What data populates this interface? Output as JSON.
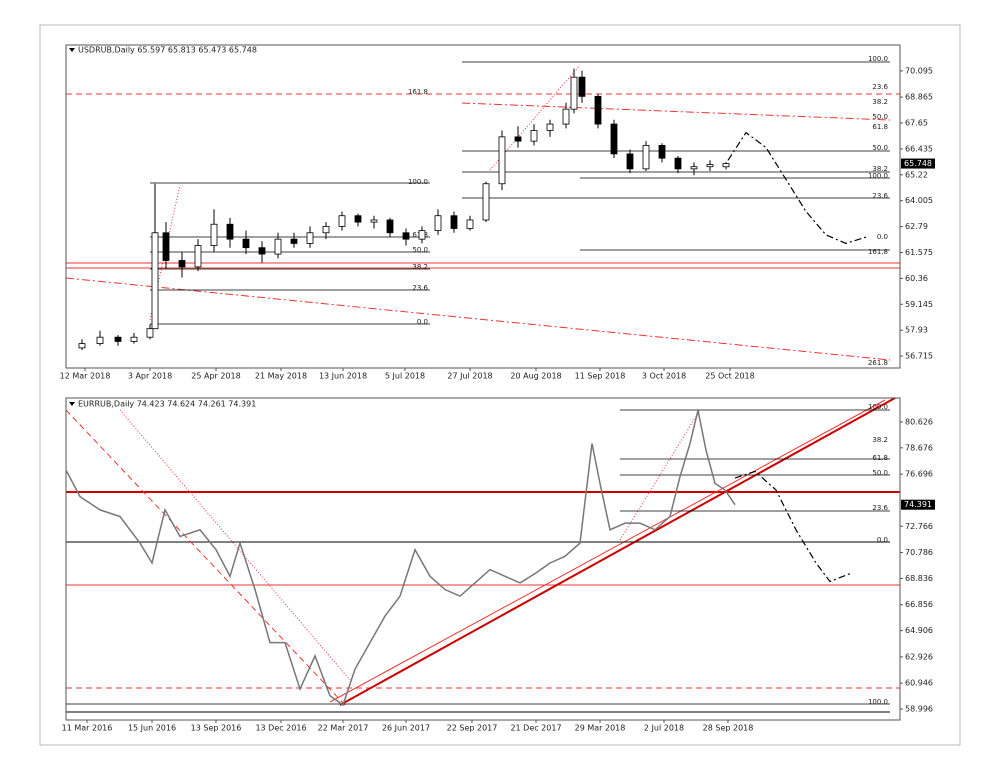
{
  "chart_data": [
    {
      "type": "candlestick",
      "header": "USDRUB,Daily  65.597 65.813 65.473 65.748",
      "x": [
        16,
        34,
        52,
        68,
        84,
        89,
        100,
        116,
        132,
        148,
        164,
        180,
        196,
        212,
        228,
        244,
        260,
        276,
        292,
        308,
        324,
        340,
        356,
        372,
        388,
        404,
        420,
        436,
        452,
        468,
        484,
        500,
        508,
        516,
        532,
        548,
        564,
        580,
        596,
        612,
        628,
        644,
        660
      ],
      "open": [
        57.1,
        57.3,
        57.6,
        57.4,
        57.6,
        58.0,
        62.5,
        61.2,
        60.9,
        61.9,
        62.9,
        62.2,
        61.8,
        61.5,
        62.2,
        62.0,
        62.5,
        62.8,
        63.3,
        63.0,
        63.1,
        62.5,
        62.2,
        62.6,
        63.3,
        62.7,
        63.1,
        64.8,
        67.0,
        66.8,
        67.3,
        67.6,
        68.3,
        69.8,
        68.9,
        67.6,
        66.2,
        65.5,
        66.6,
        66.0,
        65.5,
        65.6,
        65.597
      ],
      "high": [
        57.5,
        57.9,
        57.7,
        57.8,
        58.2,
        64.8,
        63.0,
        61.6,
        62.2,
        63.6,
        63.2,
        62.6,
        62.1,
        62.5,
        62.5,
        62.8,
        63.0,
        63.5,
        63.4,
        63.3,
        63.2,
        62.7,
        62.8,
        63.6,
        63.5,
        63.3,
        64.9,
        67.3,
        67.5,
        67.6,
        67.8,
        68.6,
        70.2,
        70.1,
        69.0,
        67.8,
        66.4,
        66.8,
        66.7,
        66.1,
        65.8,
        65.9,
        65.813
      ],
      "low": [
        57.0,
        57.2,
        57.2,
        57.3,
        57.5,
        58.0,
        60.8,
        60.4,
        60.7,
        61.6,
        61.8,
        61.5,
        61.1,
        61.3,
        61.8,
        61.8,
        62.2,
        62.6,
        62.8,
        62.7,
        62.3,
        61.9,
        62.0,
        62.4,
        62.5,
        62.6,
        63.0,
        64.5,
        66.5,
        66.6,
        67.0,
        67.4,
        68.1,
        68.6,
        67.4,
        66.0,
        65.3,
        65.4,
        65.8,
        65.3,
        65.2,
        65.4,
        65.473
      ],
      "close": [
        57.3,
        57.6,
        57.4,
        57.6,
        58.0,
        62.5,
        61.2,
        60.9,
        61.9,
        62.9,
        62.2,
        61.8,
        61.5,
        62.2,
        62.0,
        62.5,
        62.8,
        63.3,
        63.0,
        63.1,
        62.5,
        62.2,
        62.6,
        63.3,
        62.7,
        63.1,
        64.8,
        67.0,
        66.8,
        67.3,
        67.6,
        68.3,
        69.8,
        68.9,
        67.6,
        66.2,
        65.5,
        66.6,
        66.0,
        65.5,
        65.6,
        65.7,
        65.748
      ],
      "projection": {
        "x": [
          662,
          680,
          700,
          720,
          740,
          760,
          780,
          800
        ],
        "y": [
          65.9,
          67.2,
          66.5,
          65.0,
          63.5,
          62.4,
          62.0,
          62.3
        ]
      },
      "xlim": [
        0,
        834
      ],
      "ylim": [
        56.155,
        71.31
      ],
      "xticks": [
        {
          "value": 19,
          "label": "12 Mar 2018"
        },
        {
          "value": 84,
          "label": "3 Apr 2018"
        },
        {
          "value": 150,
          "label": "25 Apr 2018"
        },
        {
          "value": 215,
          "label": "21 May 2018"
        },
        {
          "value": 277,
          "label": "13 Jun 2018"
        },
        {
          "value": 339,
          "label": "5 Jul 2018"
        },
        {
          "value": 404,
          "label": "27 Jul 2018"
        },
        {
          "value": 470,
          "label": "20 Aug 2018"
        },
        {
          "value": 534,
          "label": "11 Sep 2018"
        },
        {
          "value": 598,
          "label": "3 Oct 2018"
        },
        {
          "value": 664,
          "label": "25 Oct 2018"
        }
      ],
      "yticks": [
        70.095,
        68.865,
        67.65,
        66.435,
        65.22,
        64.005,
        62.79,
        61.575,
        60.36,
        59.145,
        57.93,
        56.715
      ],
      "level_labels": [
        "100.0",
        "61.8",
        "50.0",
        "38.2",
        "23.6",
        "0.0",
        "161.8",
        "100.0",
        "23.6",
        "38.2",
        "50.0",
        "61.8",
        "50.0",
        "38.2",
        "100.0",
        "23.6",
        "0.0",
        "161.8",
        "261.8"
      ]
    },
    {
      "type": "line",
      "header": "EURRUB,Daily  74.423 74.624 74.261 74.391",
      "x": [
        0,
        14,
        34,
        54,
        74,
        86,
        99,
        114,
        134,
        150,
        164,
        174,
        189,
        204,
        219,
        234,
        249,
        264,
        277,
        289,
        304,
        319,
        334,
        349,
        364,
        379,
        394,
        409,
        424,
        439,
        454,
        469,
        484,
        499,
        514,
        526,
        534,
        544,
        559,
        574,
        589,
        604,
        614,
        624,
        632,
        640,
        649,
        659,
        669
      ],
      "values": [
        77,
        75,
        74,
        73.5,
        71.5,
        70,
        74,
        72,
        72.5,
        71,
        69,
        71.5,
        68,
        64,
        64,
        60.5,
        63,
        60,
        59.3,
        62,
        64,
        66,
        67.5,
        71,
        69,
        68,
        67.5,
        68.5,
        69.5,
        69,
        68.5,
        69.2,
        70,
        70.5,
        71.5,
        79,
        76,
        72.5,
        73,
        73,
        72.5,
        73.5,
        76.5,
        79,
        81.5,
        78.5,
        76,
        75.5,
        74.391
      ],
      "projection": {
        "x": [
          669,
          689,
          710,
          730,
          750,
          764,
          784
        ],
        "y": [
          76.4,
          76.9,
          75.5,
          72.5,
          70.0,
          68.6,
          69.2
        ]
      },
      "xlim": [
        0,
        834
      ],
      "ylim": [
        58.17,
        82.43
      ],
      "xticks": [
        {
          "value": 21,
          "label": "11 Mar 2016"
        },
        {
          "value": 86,
          "label": "15 Jun 2016"
        },
        {
          "value": 150,
          "label": "13 Sep 2016"
        },
        {
          "value": 215,
          "label": "13 Dec 2016"
        },
        {
          "value": 277,
          "label": "22 Mar 2017"
        },
        {
          "value": 340,
          "label": "26 Jun 2017"
        },
        {
          "value": 406,
          "label": "22 Sep 2017"
        },
        {
          "value": 470,
          "label": "21 Dec 2017"
        },
        {
          "value": 534,
          "label": "29 Mar 2018"
        },
        {
          "value": 598,
          "label": "2 Jul 2018"
        },
        {
          "value": 662,
          "label": "28 Sep 2018"
        }
      ],
      "yticks": [
        80.626,
        78.676,
        76.696,
        72.766,
        70.786,
        68.836,
        66.856,
        64.906,
        62.926,
        60.946,
        58.996
      ],
      "level_labels": [
        "100.0",
        "38.2",
        "61.8",
        "50.0",
        "23.6",
        "0.0",
        "100.0"
      ]
    }
  ]
}
